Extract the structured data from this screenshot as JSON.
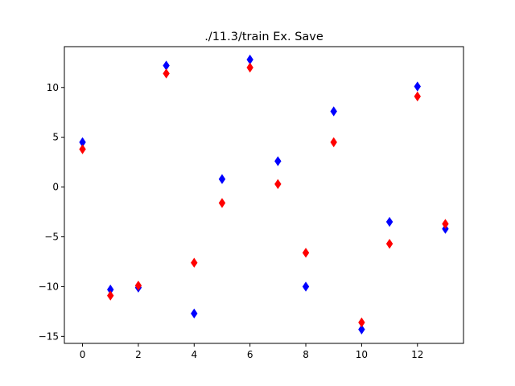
{
  "chart_data": {
    "type": "scatter",
    "title": "./11.3/train Ex. Save",
    "xlabel": "",
    "ylabel": "",
    "xlim": [
      -0.65,
      13.65
    ],
    "ylim": [
      -15.7,
      14.1
    ],
    "xticks": [
      0,
      2,
      4,
      6,
      8,
      10,
      12
    ],
    "yticks": [
      -15,
      -10,
      -5,
      0,
      5,
      10
    ],
    "marker": "diamond",
    "grid": false,
    "legend": "none",
    "series": [
      {
        "color": "#0000ff",
        "x": [
          0,
          1,
          2,
          3,
          4,
          5,
          6,
          7,
          8,
          9,
          10,
          11,
          12,
          13
        ],
        "y": [
          4.5,
          -10.3,
          -10.1,
          12.2,
          -12.7,
          0.8,
          12.8,
          2.6,
          -10.0,
          7.6,
          -14.3,
          -3.5,
          10.1,
          -4.2
        ]
      },
      {
        "color": "#ff0000",
        "x": [
          0,
          1,
          2,
          3,
          4,
          5,
          6,
          7,
          8,
          9,
          10,
          11,
          12,
          13
        ],
        "y": [
          3.8,
          -10.9,
          -9.9,
          11.4,
          -7.6,
          -1.6,
          12.0,
          0.3,
          -6.6,
          4.5,
          -13.6,
          -5.7,
          9.1,
          -3.7
        ]
      }
    ]
  }
}
